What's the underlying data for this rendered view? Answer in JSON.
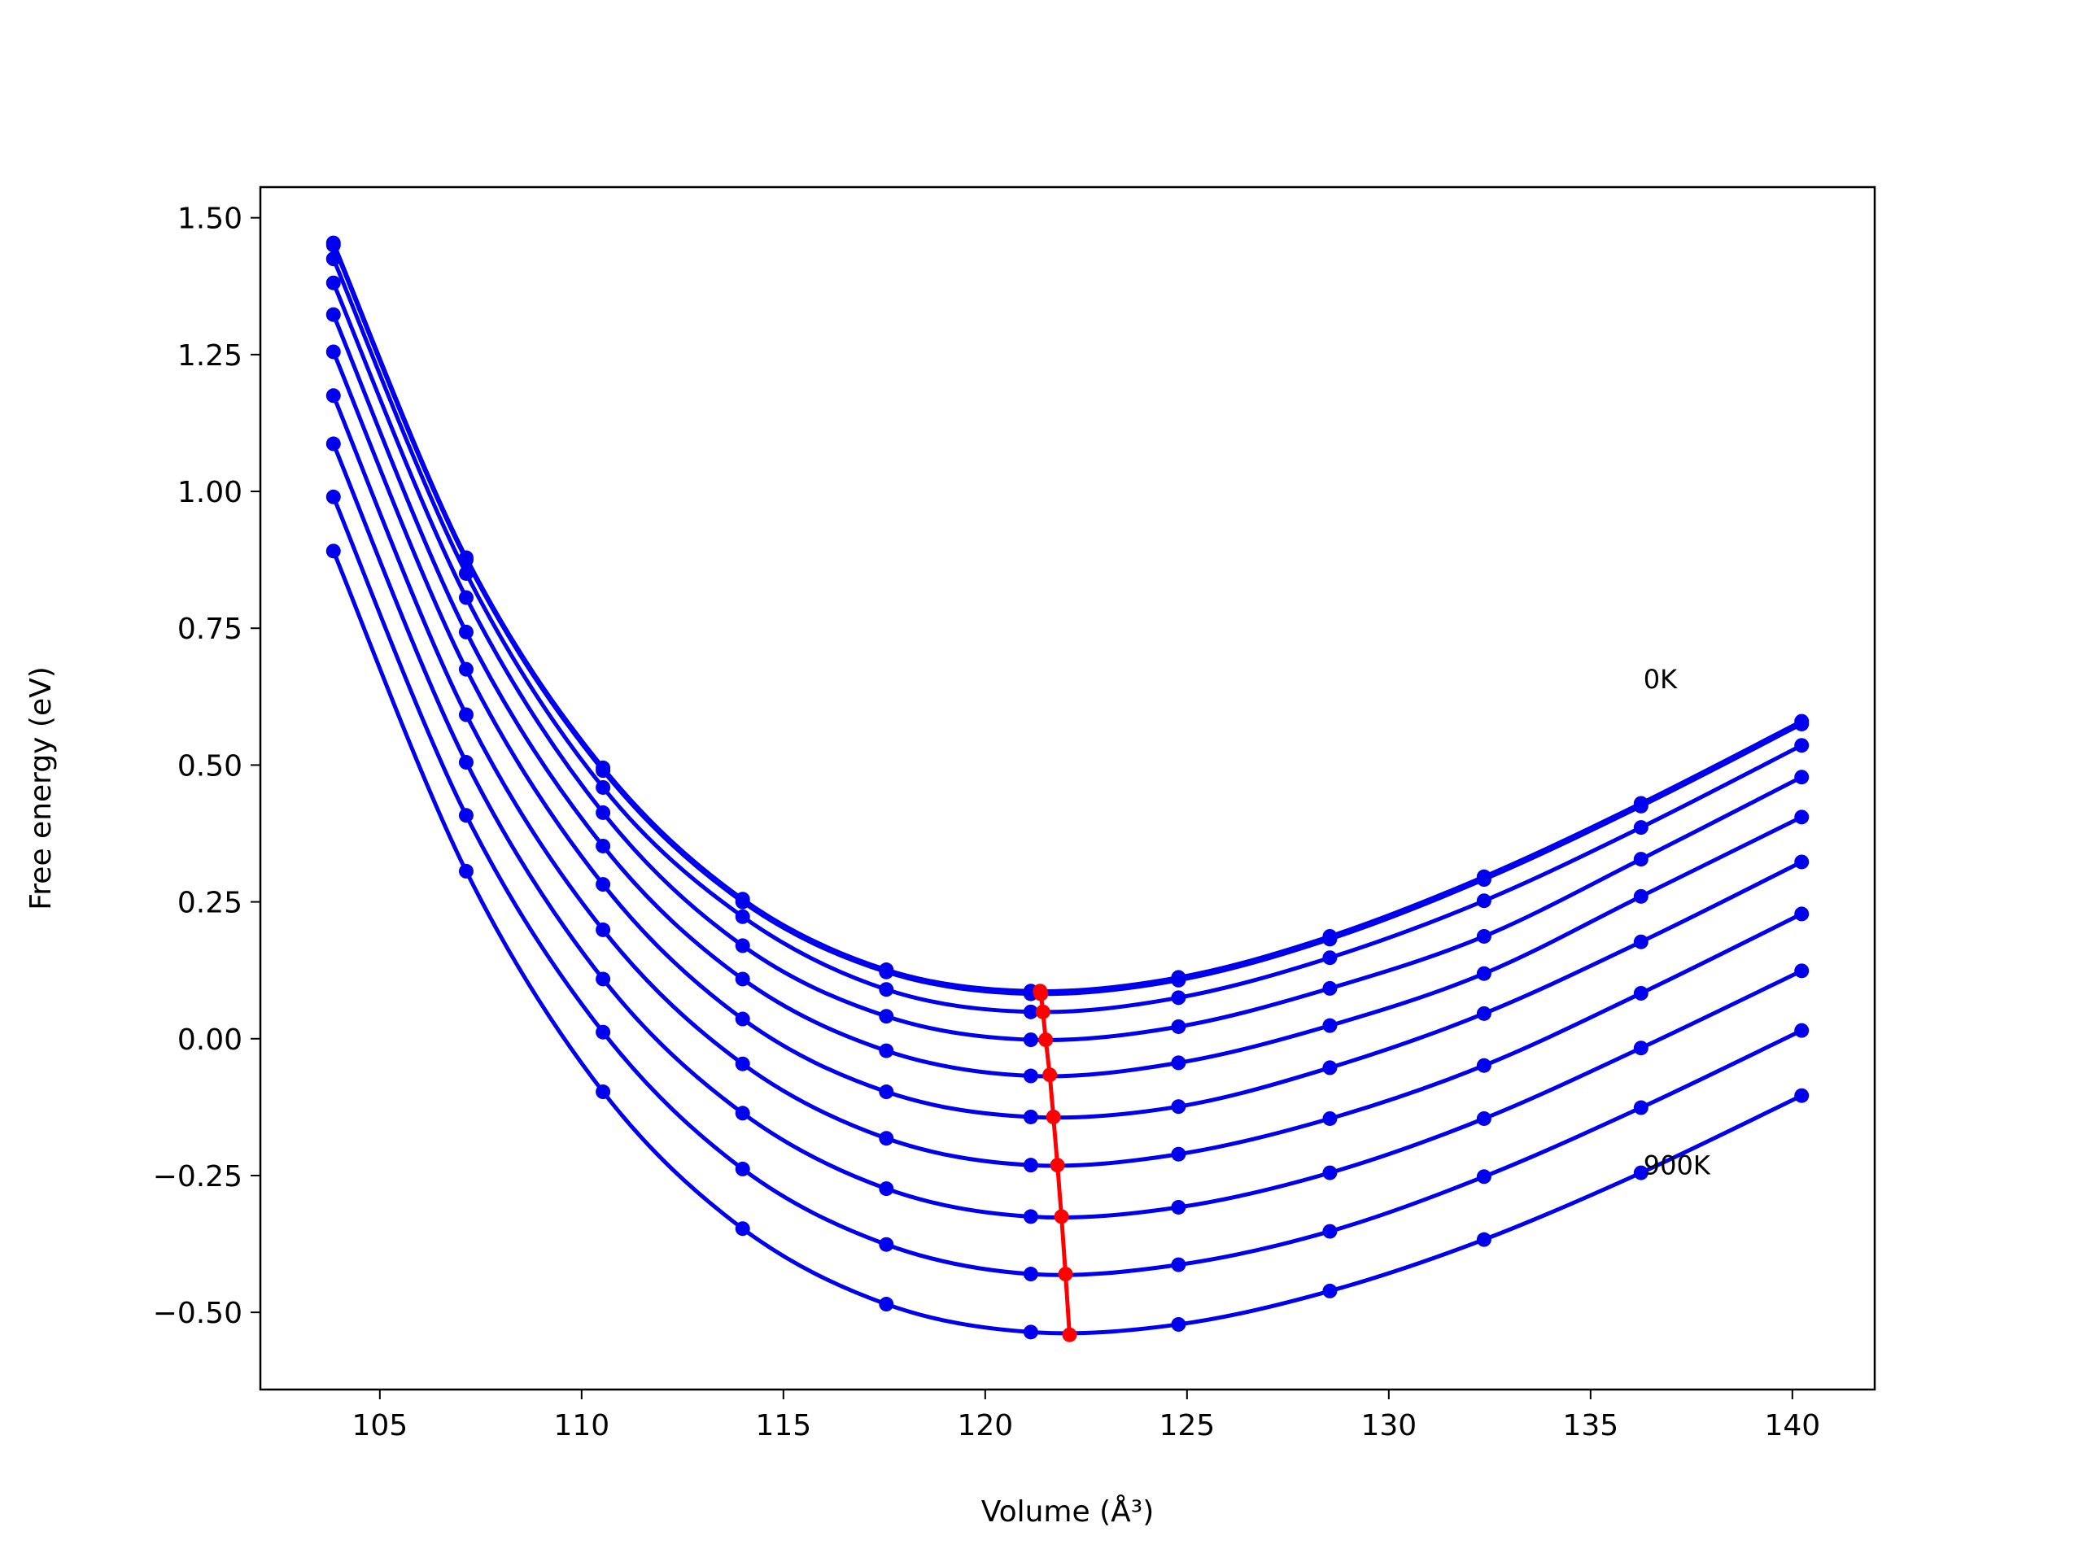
{
  "chart_data": {
    "type": "line",
    "xlabel": "Volume (Å³)",
    "ylabel": "Free energy (eV)",
    "x": [
      103.85,
      107.14,
      110.53,
      113.99,
      117.55,
      121.13,
      124.79,
      128.54,
      132.36,
      136.25,
      140.23
    ],
    "series": [
      {
        "color": "#0000ee",
        "values": [
          1.454,
          0.879,
          0.495,
          0.255,
          0.126,
          0.087,
          0.112,
          0.187,
          0.296,
          0.43,
          0.58
        ]
      },
      {
        "color": "#0000ee",
        "values": [
          1.45,
          0.875,
          0.49,
          0.25,
          0.122,
          0.082,
          0.107,
          0.182,
          0.291,
          0.425,
          0.575
        ]
      },
      {
        "color": "#0000ee",
        "values": [
          1.425,
          0.85,
          0.459,
          0.223,
          0.09,
          0.049,
          0.075,
          0.148,
          0.252,
          0.386,
          0.536
        ]
      },
      {
        "color": "#0000ee",
        "values": [
          1.381,
          0.806,
          0.413,
          0.17,
          0.041,
          -0.002,
          0.022,
          0.092,
          0.187,
          0.328,
          0.478
        ]
      },
      {
        "color": "#0000ee",
        "values": [
          1.323,
          0.743,
          0.352,
          0.109,
          -0.022,
          -0.068,
          -0.044,
          0.024,
          0.119,
          0.26,
          0.405
        ]
      },
      {
        "color": "#0000ee",
        "values": [
          1.255,
          0.675,
          0.282,
          0.036,
          -0.097,
          -0.143,
          -0.124,
          -0.053,
          0.046,
          0.177,
          0.323
        ]
      },
      {
        "color": "#0000ee",
        "values": [
          1.175,
          0.592,
          0.199,
          -0.046,
          -0.182,
          -0.231,
          -0.211,
          -0.146,
          -0.049,
          0.083,
          0.228
        ]
      },
      {
        "color": "#0000ee",
        "values": [
          1.087,
          0.505,
          0.109,
          -0.136,
          -0.274,
          -0.325,
          -0.308,
          -0.245,
          -0.146,
          -0.017,
          0.124
        ]
      },
      {
        "color": "#0000ee",
        "values": [
          0.99,
          0.408,
          0.012,
          -0.238,
          -0.376,
          -0.43,
          -0.413,
          -0.352,
          -0.252,
          -0.126,
          0.015
        ]
      },
      {
        "color": "#0000ee",
        "values": [
          0.891,
          0.306,
          -0.097,
          -0.347,
          -0.485,
          -0.536,
          -0.522,
          -0.461,
          -0.367,
          -0.245,
          -0.104
        ]
      },
      {
        "color": "#ff0000",
        "x": [
          121.36,
          121.38,
          121.43,
          121.5,
          121.6,
          121.69,
          121.79,
          121.89,
          121.99,
          122.09
        ],
        "values": [
          0.087,
          0.082,
          0.049,
          -0.002,
          -0.066,
          -0.143,
          -0.231,
          -0.325,
          -0.43,
          -0.541
        ]
      }
    ],
    "annotations": [
      {
        "text": "0K",
        "x": 136.31,
        "y": 0.655
      },
      {
        "text": "900K",
        "x": 136.31,
        "y": -0.233
      }
    ],
    "xlim": [
      102.04,
      142.04
    ],
    "ylim": [
      -0.641,
      1.556
    ],
    "xticks": [
      105,
      110,
      115,
      120,
      125,
      130,
      135,
      140
    ],
    "yticks": [
      {
        "value": -0.5,
        "label": "−0.50"
      },
      {
        "value": -0.25,
        "label": "−0.25"
      },
      {
        "value": 0,
        "label": "0.00"
      },
      {
        "value": 0.25,
        "label": "0.25"
      },
      {
        "value": 0.5,
        "label": "0.50"
      },
      {
        "value": 0.75,
        "label": "0.75"
      },
      {
        "value": 1,
        "label": "1.00"
      },
      {
        "value": 1.25,
        "label": "1.25"
      },
      {
        "value": 1.5,
        "label": "1.50"
      }
    ],
    "grid": false
  }
}
